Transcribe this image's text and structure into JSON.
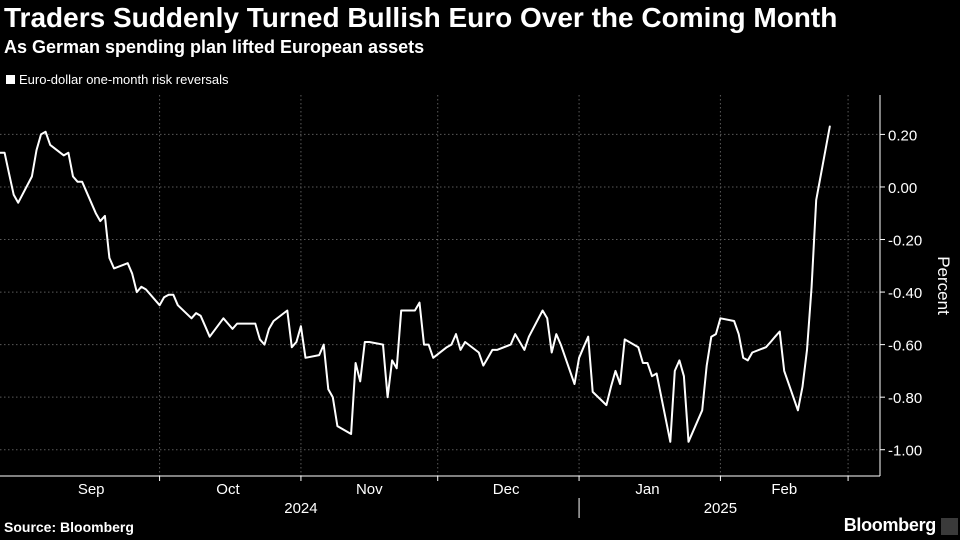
{
  "title": "Traders Suddenly Turned Bullish Euro Over the Coming Month",
  "subtitle": "As German spending plan lifted European assets",
  "source": "Source: Bloomberg",
  "brand": "Bloomberg",
  "colors": {
    "background": "#000000",
    "line": "#ffffff",
    "grid": "#5a5a5a"
  },
  "chart_data": {
    "type": "line",
    "title": "Traders Suddenly Turned Bullish Euro Over the Coming Month",
    "ylabel": "Percent",
    "xlabel": "",
    "ylim": [
      -1.1,
      0.35
    ],
    "yticks": [
      0.2,
      0.0,
      -0.2,
      -0.4,
      -0.6,
      -0.8,
      -1.0
    ],
    "ytick_labels": [
      "0.20",
      "0.00",
      "-0.20",
      "-0.40",
      "-0.60",
      "-0.80",
      "-1.00"
    ],
    "grid": true,
    "legend": [
      "Euro-dollar one-month risk reversals"
    ],
    "legend_position": "top-left",
    "x_start": "2024-08-26",
    "x_end": "2025-03-07",
    "month_labels": [
      {
        "label": "Sep",
        "date": "2024-09-15"
      },
      {
        "label": "Oct",
        "date": "2024-10-15"
      },
      {
        "label": "Nov",
        "date": "2024-11-15"
      },
      {
        "label": "Dec",
        "date": "2024-12-15"
      },
      {
        "label": "Jan",
        "date": "2025-01-15"
      },
      {
        "label": "Feb",
        "date": "2025-02-14"
      }
    ],
    "month_boundaries": [
      "2024-09-30",
      "2024-10-31",
      "2024-11-30",
      "2024-12-31",
      "2025-01-31",
      "2025-02-28"
    ],
    "year_labels": [
      {
        "label": "2024",
        "date": "2024-10-31"
      },
      {
        "label": "2025",
        "date": "2025-01-31"
      }
    ],
    "year_boundary": "2024-12-31",
    "series": [
      {
        "name": "Euro-dollar one-month risk reversals",
        "points": [
          [
            "2024-08-26",
            0.13
          ],
          [
            "2024-08-27",
            0.13
          ],
          [
            "2024-08-28",
            0.05
          ],
          [
            "2024-08-29",
            -0.03
          ],
          [
            "2024-08-30",
            -0.06
          ],
          [
            "2024-09-02",
            0.04
          ],
          [
            "2024-09-03",
            0.14
          ],
          [
            "2024-09-04",
            0.2
          ],
          [
            "2024-09-05",
            0.21
          ],
          [
            "2024-09-06",
            0.16
          ],
          [
            "2024-09-09",
            0.12
          ],
          [
            "2024-09-10",
            0.13
          ],
          [
            "2024-09-11",
            0.04
          ],
          [
            "2024-09-12",
            0.02
          ],
          [
            "2024-09-13",
            0.02
          ],
          [
            "2024-09-16",
            -0.1
          ],
          [
            "2024-09-17",
            -0.13
          ],
          [
            "2024-09-18",
            -0.11
          ],
          [
            "2024-09-19",
            -0.27
          ],
          [
            "2024-09-20",
            -0.31
          ],
          [
            "2024-09-23",
            -0.29
          ],
          [
            "2024-09-24",
            -0.33
          ],
          [
            "2024-09-25",
            -0.4
          ],
          [
            "2024-09-26",
            -0.38
          ],
          [
            "2024-09-27",
            -0.39
          ],
          [
            "2024-09-30",
            -0.45
          ],
          [
            "2024-10-01",
            -0.42
          ],
          [
            "2024-10-02",
            -0.41
          ],
          [
            "2024-10-03",
            -0.41
          ],
          [
            "2024-10-04",
            -0.45
          ],
          [
            "2024-10-07",
            -0.5
          ],
          [
            "2024-10-08",
            -0.48
          ],
          [
            "2024-10-09",
            -0.49
          ],
          [
            "2024-10-10",
            -0.53
          ],
          [
            "2024-10-11",
            -0.57
          ],
          [
            "2024-10-14",
            -0.5
          ],
          [
            "2024-10-15",
            -0.52
          ],
          [
            "2024-10-16",
            -0.54
          ],
          [
            "2024-10-17",
            -0.52
          ],
          [
            "2024-10-18",
            -0.52
          ],
          [
            "2024-10-21",
            -0.52
          ],
          [
            "2024-10-22",
            -0.58
          ],
          [
            "2024-10-23",
            -0.6
          ],
          [
            "2024-10-24",
            -0.54
          ],
          [
            "2024-10-25",
            -0.51
          ],
          [
            "2024-10-28",
            -0.47
          ],
          [
            "2024-10-29",
            -0.61
          ],
          [
            "2024-10-30",
            -0.59
          ],
          [
            "2024-10-31",
            -0.53
          ],
          [
            "2024-11-01",
            -0.65
          ],
          [
            "2024-11-04",
            -0.64
          ],
          [
            "2024-11-05",
            -0.6
          ],
          [
            "2024-11-06",
            -0.77
          ],
          [
            "2024-11-07",
            -0.8
          ],
          [
            "2024-11-08",
            -0.91
          ],
          [
            "2024-11-11",
            -0.94
          ],
          [
            "2024-11-12",
            -0.67
          ],
          [
            "2024-11-13",
            -0.74
          ],
          [
            "2024-11-14",
            -0.59
          ],
          [
            "2024-11-15",
            -0.59
          ],
          [
            "2024-11-18",
            -0.6
          ],
          [
            "2024-11-19",
            -0.8
          ],
          [
            "2024-11-20",
            -0.66
          ],
          [
            "2024-11-21",
            -0.69
          ],
          [
            "2024-11-22",
            -0.47
          ],
          [
            "2024-11-25",
            -0.47
          ],
          [
            "2024-11-26",
            -0.44
          ],
          [
            "2024-11-27",
            -0.6
          ],
          [
            "2024-11-28",
            -0.6
          ],
          [
            "2024-11-29",
            -0.65
          ],
          [
            "2024-12-02",
            -0.61
          ],
          [
            "2024-12-03",
            -0.6
          ],
          [
            "2024-12-04",
            -0.56
          ],
          [
            "2024-12-05",
            -0.62
          ],
          [
            "2024-12-06",
            -0.59
          ],
          [
            "2024-12-09",
            -0.63
          ],
          [
            "2024-12-10",
            -0.68
          ],
          [
            "2024-12-11",
            -0.65
          ],
          [
            "2024-12-12",
            -0.62
          ],
          [
            "2024-12-13",
            -0.62
          ],
          [
            "2024-12-16",
            -0.6
          ],
          [
            "2024-12-17",
            -0.56
          ],
          [
            "2024-12-18",
            -0.59
          ],
          [
            "2024-12-19",
            -0.62
          ],
          [
            "2024-12-20",
            -0.57
          ],
          [
            "2024-12-23",
            -0.47
          ],
          [
            "2024-12-24",
            -0.5
          ],
          [
            "2024-12-25",
            -0.63
          ],
          [
            "2024-12-26",
            -0.56
          ],
          [
            "2024-12-27",
            -0.6
          ],
          [
            "2024-12-30",
            -0.75
          ],
          [
            "2024-12-31",
            -0.65
          ],
          [
            "2025-01-01",
            -0.61
          ],
          [
            "2025-01-02",
            -0.57
          ],
          [
            "2025-01-03",
            -0.78
          ],
          [
            "2025-01-06",
            -0.83
          ],
          [
            "2025-01-07",
            -0.76
          ],
          [
            "2025-01-08",
            -0.7
          ],
          [
            "2025-01-09",
            -0.75
          ],
          [
            "2025-01-10",
            -0.58
          ],
          [
            "2025-01-13",
            -0.61
          ],
          [
            "2025-01-14",
            -0.67
          ],
          [
            "2025-01-15",
            -0.67
          ],
          [
            "2025-01-16",
            -0.72
          ],
          [
            "2025-01-17",
            -0.71
          ],
          [
            "2025-01-20",
            -0.97
          ],
          [
            "2025-01-21",
            -0.7
          ],
          [
            "2025-01-22",
            -0.66
          ],
          [
            "2025-01-23",
            -0.72
          ],
          [
            "2025-01-24",
            -0.97
          ],
          [
            "2025-01-27",
            -0.85
          ],
          [
            "2025-01-28",
            -0.68
          ],
          [
            "2025-01-29",
            -0.57
          ],
          [
            "2025-01-30",
            -0.56
          ],
          [
            "2025-01-31",
            -0.5
          ],
          [
            "2025-02-03",
            -0.51
          ],
          [
            "2025-02-04",
            -0.56
          ],
          [
            "2025-02-05",
            -0.65
          ],
          [
            "2025-02-06",
            -0.66
          ],
          [
            "2025-02-07",
            -0.63
          ],
          [
            "2025-02-10",
            -0.61
          ],
          [
            "2025-02-11",
            -0.59
          ],
          [
            "2025-02-12",
            -0.57
          ],
          [
            "2025-02-13",
            -0.55
          ],
          [
            "2025-02-14",
            -0.7
          ],
          [
            "2025-02-17",
            -0.85
          ],
          [
            "2025-02-18",
            -0.76
          ],
          [
            "2025-02-19",
            -0.62
          ],
          [
            "2025-02-20",
            -0.38
          ],
          [
            "2025-02-21",
            -0.05
          ],
          [
            "2025-02-24",
            0.23
          ]
        ]
      }
    ]
  }
}
